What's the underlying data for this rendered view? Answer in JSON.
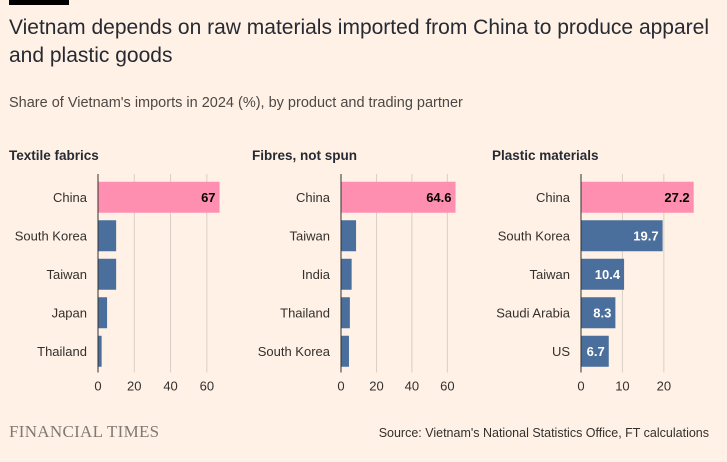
{
  "title": "Vietnam depends on raw materials imported from China to produce apparel and plastic goods",
  "subtitle": "Share of Vietnam's imports in 2024 (%), by product and trading partner",
  "source": "Source: Vietnam's National Statistics Office, FT calculations",
  "brand": "FINANCIAL TIMES",
  "colors": {
    "highlight": "#ff8fb1",
    "bar": "#4a6f9c",
    "grid": "#d9cfc5",
    "axis": "#33302e",
    "background": "#fff1e5"
  },
  "chart_data": [
    {
      "type": "bar",
      "title": "Textile fabrics",
      "categories": [
        "China",
        "South Korea",
        "Taiwan",
        "Japan",
        "Thailand"
      ],
      "values": [
        67,
        10,
        10,
        5,
        2
      ],
      "value_labels": [
        "67",
        "",
        "",
        "",
        ""
      ],
      "xlim": [
        0,
        70
      ],
      "ticks": [
        0,
        20,
        40,
        60
      ],
      "grid": true
    },
    {
      "type": "bar",
      "title": "Fibres, not spun",
      "categories": [
        "China",
        "Taiwan",
        "India",
        "Thailand",
        "South Korea"
      ],
      "values": [
        64.6,
        8.5,
        6,
        5,
        4.5
      ],
      "value_labels": [
        "64.6",
        "",
        "",
        "",
        ""
      ],
      "xlim": [
        0,
        66
      ],
      "ticks": [
        0,
        20,
        40,
        60
      ],
      "grid": true
    },
    {
      "type": "bar",
      "title": "Plastic materials",
      "categories": [
        "China",
        "South Korea",
        "Taiwan",
        "Saudi Arabia",
        "US"
      ],
      "values": [
        27.2,
        19.7,
        10.4,
        8.3,
        6.7
      ],
      "value_labels": [
        "27.2",
        "19.7",
        "10.4",
        "8.3",
        "6.7"
      ],
      "xlim": [
        0,
        28
      ],
      "ticks": [
        0,
        10,
        20
      ],
      "grid": true
    }
  ]
}
